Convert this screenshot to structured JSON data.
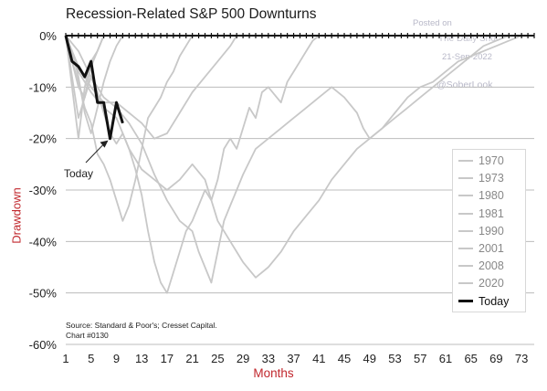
{
  "title": "Recession-Related S&P 500 Downturns",
  "ylabel": "Drawdown",
  "xlabel": "Months",
  "source_lines": [
    "Source: Standard & Poor's; Cresset Capital.",
    "Chart #0130"
  ],
  "watermark": [
    "Posted on",
    "The Daily Shot",
    "21-Sep-2022",
    "@SoberLook"
  ],
  "annotation": "Today",
  "colors": {
    "history": "#c8c8c8",
    "today": "#111111",
    "axis_label": "#c1272d",
    "grid": "#bcbcbc"
  },
  "legend": [
    "1970",
    "1973",
    "1980",
    "1981",
    "1990",
    "2001",
    "2008",
    "2020",
    "Today"
  ],
  "chart_data": {
    "type": "line",
    "title": "Recession-Related S&P 500 Downturns",
    "xlabel": "Months",
    "ylabel": "Drawdown",
    "xlim": [
      1,
      75
    ],
    "ylim": [
      -60,
      0
    ],
    "x_ticks": [
      1,
      5,
      9,
      13,
      17,
      21,
      25,
      29,
      33,
      37,
      41,
      45,
      49,
      53,
      57,
      61,
      65,
      69,
      73
    ],
    "y_ticks": [
      0,
      -10,
      -20,
      -30,
      -40,
      -50,
      -60
    ],
    "y_tick_labels": [
      "0%",
      "-10%",
      "-20%",
      "-30%",
      "-40%",
      "-50%",
      "-60%"
    ],
    "grid": "horizontal",
    "legend_position": "right",
    "series": [
      {
        "name": "1970",
        "points": [
          [
            1,
            0
          ],
          [
            2,
            -5
          ],
          [
            3,
            -9
          ],
          [
            4,
            -14
          ],
          [
            5,
            -17
          ],
          [
            6,
            -23
          ],
          [
            7,
            -25
          ],
          [
            8,
            -28
          ],
          [
            9,
            -32
          ],
          [
            10,
            -36
          ],
          [
            11,
            -33
          ],
          [
            12,
            -28
          ],
          [
            13,
            -22
          ],
          [
            14,
            -16
          ],
          [
            15,
            -14
          ],
          [
            16,
            -12
          ],
          [
            17,
            -9
          ],
          [
            18,
            -7
          ],
          [
            19,
            -4
          ],
          [
            20,
            -2
          ],
          [
            21,
            0
          ]
        ]
      },
      {
        "name": "1973",
        "points": [
          [
            1,
            0
          ],
          [
            3,
            -3
          ],
          [
            5,
            -8
          ],
          [
            7,
            -12
          ],
          [
            9,
            -14
          ],
          [
            11,
            -17
          ],
          [
            13,
            -21
          ],
          [
            15,
            -27
          ],
          [
            17,
            -32
          ],
          [
            19,
            -36
          ],
          [
            21,
            -38
          ],
          [
            22,
            -42
          ],
          [
            23,
            -45
          ],
          [
            24,
            -48
          ],
          [
            25,
            -42
          ],
          [
            26,
            -36
          ],
          [
            27,
            -33
          ],
          [
            28,
            -30
          ],
          [
            29,
            -27
          ],
          [
            31,
            -22
          ],
          [
            33,
            -20
          ],
          [
            35,
            -18
          ],
          [
            37,
            -16
          ],
          [
            39,
            -14
          ],
          [
            41,
            -12
          ],
          [
            43,
            -10
          ],
          [
            45,
            -12
          ],
          [
            47,
            -15
          ],
          [
            48,
            -18
          ],
          [
            49,
            -20
          ],
          [
            51,
            -18
          ],
          [
            53,
            -15
          ],
          [
            55,
            -12
          ],
          [
            57,
            -10
          ],
          [
            59,
            -9
          ],
          [
            61,
            -7
          ],
          [
            63,
            -5
          ],
          [
            65,
            -4
          ],
          [
            67,
            -3
          ],
          [
            69,
            -2
          ],
          [
            71,
            -1
          ],
          [
            73,
            0
          ]
        ]
      },
      {
        "name": "1980",
        "points": [
          [
            1,
            0
          ],
          [
            2,
            -8
          ],
          [
            3,
            -16
          ],
          [
            4,
            -12
          ],
          [
            5,
            -6
          ],
          [
            6,
            -3
          ],
          [
            7,
            0
          ]
        ]
      },
      {
        "name": "1981",
        "points": [
          [
            1,
            0
          ],
          [
            3,
            -6
          ],
          [
            5,
            -10
          ],
          [
            7,
            -13
          ],
          [
            9,
            -13
          ],
          [
            11,
            -15
          ],
          [
            13,
            -17
          ],
          [
            15,
            -20
          ],
          [
            17,
            -19
          ],
          [
            19,
            -15
          ],
          [
            21,
            -11
          ],
          [
            23,
            -8
          ],
          [
            25,
            -5
          ],
          [
            27,
            -2
          ],
          [
            28,
            0
          ]
        ]
      },
      {
        "name": "1990",
        "points": [
          [
            1,
            0
          ],
          [
            2,
            -3
          ],
          [
            3,
            -8
          ],
          [
            4,
            -15
          ],
          [
            5,
            -19
          ],
          [
            6,
            -14
          ],
          [
            7,
            -9
          ],
          [
            8,
            -5
          ],
          [
            9,
            -2
          ],
          [
            10,
            0
          ]
        ]
      },
      {
        "name": "2001",
        "points": [
          [
            1,
            0
          ],
          [
            3,
            -7
          ],
          [
            5,
            -11
          ],
          [
            7,
            -14
          ],
          [
            9,
            -16
          ],
          [
            11,
            -22
          ],
          [
            13,
            -26
          ],
          [
            15,
            -28
          ],
          [
            17,
            -30
          ],
          [
            19,
            -28
          ],
          [
            21,
            -25
          ],
          [
            23,
            -28
          ],
          [
            25,
            -36
          ],
          [
            27,
            -40
          ],
          [
            29,
            -44
          ],
          [
            31,
            -47
          ],
          [
            33,
            -45
          ],
          [
            35,
            -42
          ],
          [
            37,
            -38
          ],
          [
            39,
            -35
          ],
          [
            41,
            -32
          ],
          [
            43,
            -28
          ],
          [
            45,
            -25
          ],
          [
            47,
            -22
          ],
          [
            49,
            -20
          ],
          [
            51,
            -18
          ],
          [
            53,
            -16
          ],
          [
            55,
            -14
          ],
          [
            57,
            -12
          ],
          [
            59,
            -10
          ],
          [
            61,
            -8
          ],
          [
            63,
            -6
          ],
          [
            65,
            -4
          ],
          [
            67,
            -2
          ],
          [
            69,
            -1
          ],
          [
            71,
            0
          ]
        ]
      },
      {
        "name": "2008",
        "points": [
          [
            1,
            0
          ],
          [
            2,
            -5
          ],
          [
            3,
            -10
          ],
          [
            4,
            -12
          ],
          [
            5,
            -8
          ],
          [
            6,
            -11
          ],
          [
            7,
            -15
          ],
          [
            8,
            -19
          ],
          [
            9,
            -21
          ],
          [
            10,
            -19
          ],
          [
            11,
            -22
          ],
          [
            12,
            -26
          ],
          [
            13,
            -31
          ],
          [
            14,
            -38
          ],
          [
            15,
            -44
          ],
          [
            16,
            -48
          ],
          [
            17,
            -50
          ],
          [
            18,
            -46
          ],
          [
            19,
            -42
          ],
          [
            20,
            -38
          ],
          [
            21,
            -36
          ],
          [
            22,
            -33
          ],
          [
            23,
            -30
          ],
          [
            24,
            -32
          ],
          [
            25,
            -28
          ],
          [
            26,
            -22
          ],
          [
            27,
            -20
          ],
          [
            28,
            -22
          ],
          [
            29,
            -18
          ],
          [
            30,
            -14
          ],
          [
            31,
            -16
          ],
          [
            32,
            -11
          ],
          [
            33,
            -10
          ],
          [
            35,
            -13
          ],
          [
            36,
            -9
          ],
          [
            37,
            -7
          ],
          [
            38,
            -5
          ],
          [
            39,
            -3
          ],
          [
            40,
            -1
          ],
          [
            41,
            0
          ]
        ]
      },
      {
        "name": "2020",
        "points": [
          [
            1,
            0
          ],
          [
            2,
            -10
          ],
          [
            3,
            -20
          ],
          [
            4,
            -10
          ],
          [
            5,
            -5
          ],
          [
            6,
            -3
          ],
          [
            7,
            0
          ]
        ]
      },
      {
        "name": "Today",
        "points": [
          [
            1,
            0
          ],
          [
            2,
            -5
          ],
          [
            3,
            -6
          ],
          [
            4,
            -8
          ],
          [
            5,
            -5
          ],
          [
            6,
            -13
          ],
          [
            7,
            -13
          ],
          [
            8,
            -20
          ],
          [
            9,
            -13
          ],
          [
            10,
            -17
          ]
        ]
      }
    ]
  }
}
